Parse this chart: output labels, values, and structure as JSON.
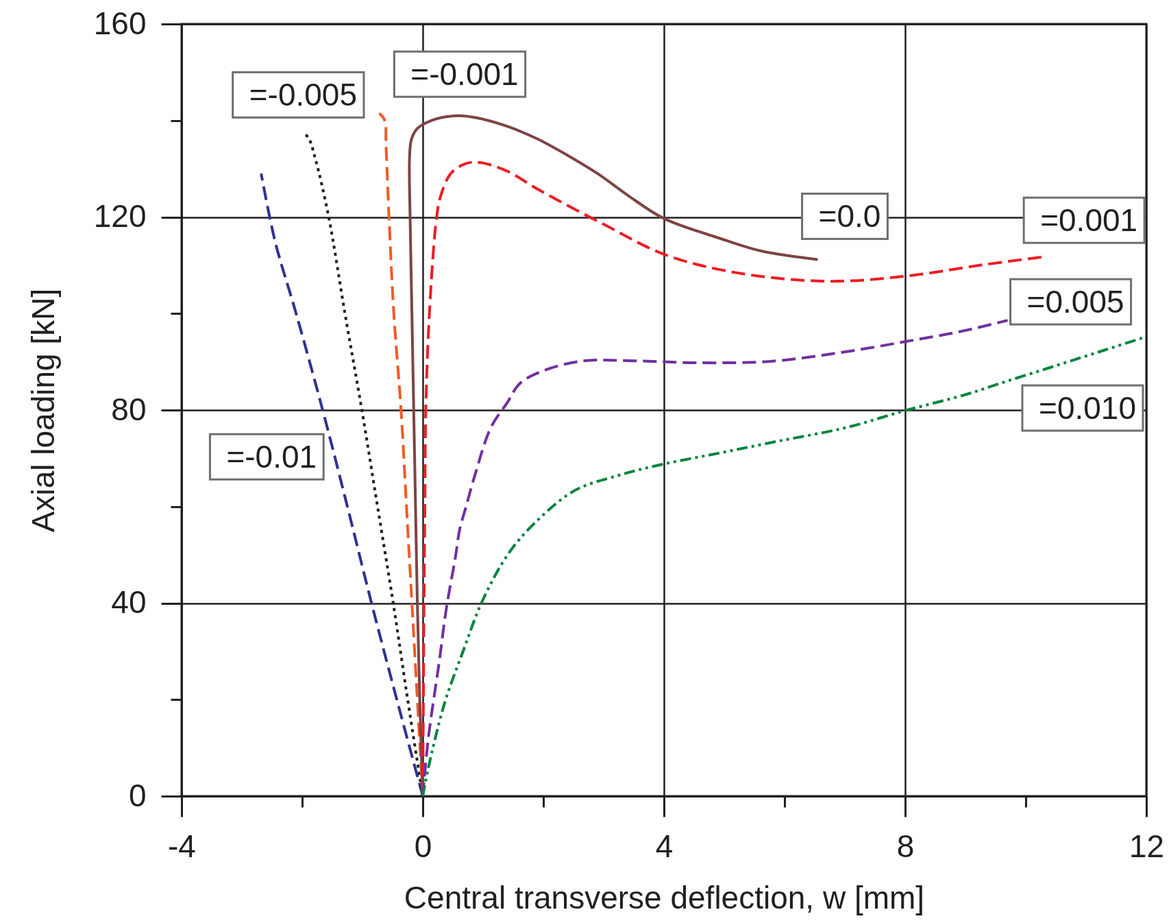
{
  "chart_data": {
    "type": "line",
    "xlabel": "Central transverse deflection, w [mm]",
    "ylabel": "Axial loading [kN]",
    "xlim": [
      -4,
      12
    ],
    "ylim": [
      0,
      160
    ],
    "xticks": [
      -4,
      {
        "value": -2,
        "label": null
      },
      0,
      {
        "value": 2,
        "label": null
      },
      4,
      {
        "value": 6,
        "label": null
      },
      8,
      {
        "value": 10,
        "label": null
      },
      12
    ],
    "yticks": [
      0,
      {
        "value": 20,
        "label": null
      },
      40,
      {
        "value": 60,
        "label": null
      },
      80,
      {
        "value": 100,
        "label": null
      },
      120,
      {
        "value": 140,
        "label": null
      },
      160
    ],
    "grid": true,
    "series": [
      {
        "name": "=-0.01",
        "color": "#2e3192",
        "line_style": "dashed",
        "x": [
          0,
          -0.43,
          -0.85,
          -1.25,
          -1.66,
          -2.1,
          -2.45,
          -2.68
        ],
        "values": [
          0,
          20,
          40,
          60,
          80,
          100,
          115,
          129
        ]
      },
      {
        "name": "=-0.005",
        "color": "#231f20",
        "line_style": "dotted",
        "x": [
          0,
          -0.25,
          -0.49,
          -0.75,
          -1.01,
          -1.29,
          -1.56,
          -1.78,
          -1.9,
          -2.0
        ],
        "values": [
          0,
          20,
          40,
          60,
          80,
          100,
          120,
          132,
          136.5,
          137.5
        ]
      },
      {
        "name": "=-0.001",
        "color": "#f15a24",
        "line_style": "dashed",
        "x": [
          0,
          -0.09,
          -0.18,
          -0.27,
          -0.36,
          -0.48,
          -0.56,
          -0.61,
          -0.63,
          -0.72
        ],
        "values": [
          0,
          20,
          40,
          60,
          80,
          100,
          120,
          135,
          140,
          141.5
        ]
      },
      {
        "name": "=0.0",
        "color": "#7d4443",
        "line_style": "solid",
        "x": [
          0,
          -0.05,
          -0.09,
          -0.12,
          -0.15,
          -0.18,
          -0.21,
          -0.22,
          -0.19,
          -0.1,
          0.05,
          0.27,
          0.59,
          0.92,
          1.4,
          1.9,
          2.4,
          2.9,
          3.4,
          4.0,
          4.9,
          5.6,
          6.55
        ],
        "values": [
          0,
          20,
          40,
          60,
          80,
          100,
          120,
          132,
          136,
          138.2,
          139.5,
          140.5,
          141,
          140.5,
          138.8,
          136.2,
          132.8,
          129,
          124.5,
          119.7,
          115.7,
          113,
          111.2
        ]
      },
      {
        "name": "=0.001",
        "color": "#ed1c24",
        "line_style": "dashed",
        "x": [
          0,
          0.01,
          0.02,
          0.035,
          0.05,
          0.11,
          0.23,
          0.3,
          0.47,
          0.72,
          0.95,
          1.4,
          1.93,
          3.0,
          4.02,
          5.23,
          6.72,
          8.04,
          9.29,
          10.32
        ],
        "values": [
          0,
          20,
          40,
          60,
          80,
          100,
          120,
          124.5,
          129.1,
          131.1,
          131.3,
          129.5,
          125.6,
          118.5,
          112.2,
          108.4,
          106.7,
          107.8,
          110.1,
          111.8
        ]
      },
      {
        "name": "=0.005",
        "color": "#7030a0",
        "line_style": "dashed",
        "x": [
          0,
          0.09,
          0.27,
          0.39,
          0.54,
          0.61,
          0.72,
          0.86,
          1.13,
          1.4,
          1.61,
          1.99,
          2.66,
          3.5,
          4.56,
          5.77,
          6.92,
          8.01,
          9.0,
          9.7
        ],
        "values": [
          0,
          11.8,
          27.6,
          38.8,
          49.4,
          55.1,
          60.1,
          66.3,
          76.4,
          81.5,
          85.5,
          88.1,
          90.2,
          90.2,
          89.8,
          90.1,
          91.9,
          94.2,
          96.5,
          98.6
        ]
      },
      {
        "name": "=0.010",
        "color": "#00843d",
        "line_style": "dashdot",
        "x": [
          0,
          0.09,
          0.36,
          0.68,
          0.99,
          1.44,
          1.94,
          2.53,
          3.2,
          3.88,
          5.0,
          5.91,
          7.0,
          8.0,
          9.0,
          9.69,
          10.5,
          11.3,
          12.0
        ],
        "values": [
          0,
          5.7,
          19.2,
          30.4,
          40.5,
          50.6,
          57.6,
          63.4,
          66.3,
          68.5,
          71.3,
          73.6,
          76.3,
          79.9,
          83.2,
          86,
          89.2,
          92.4,
          95.2
        ]
      }
    ]
  }
}
